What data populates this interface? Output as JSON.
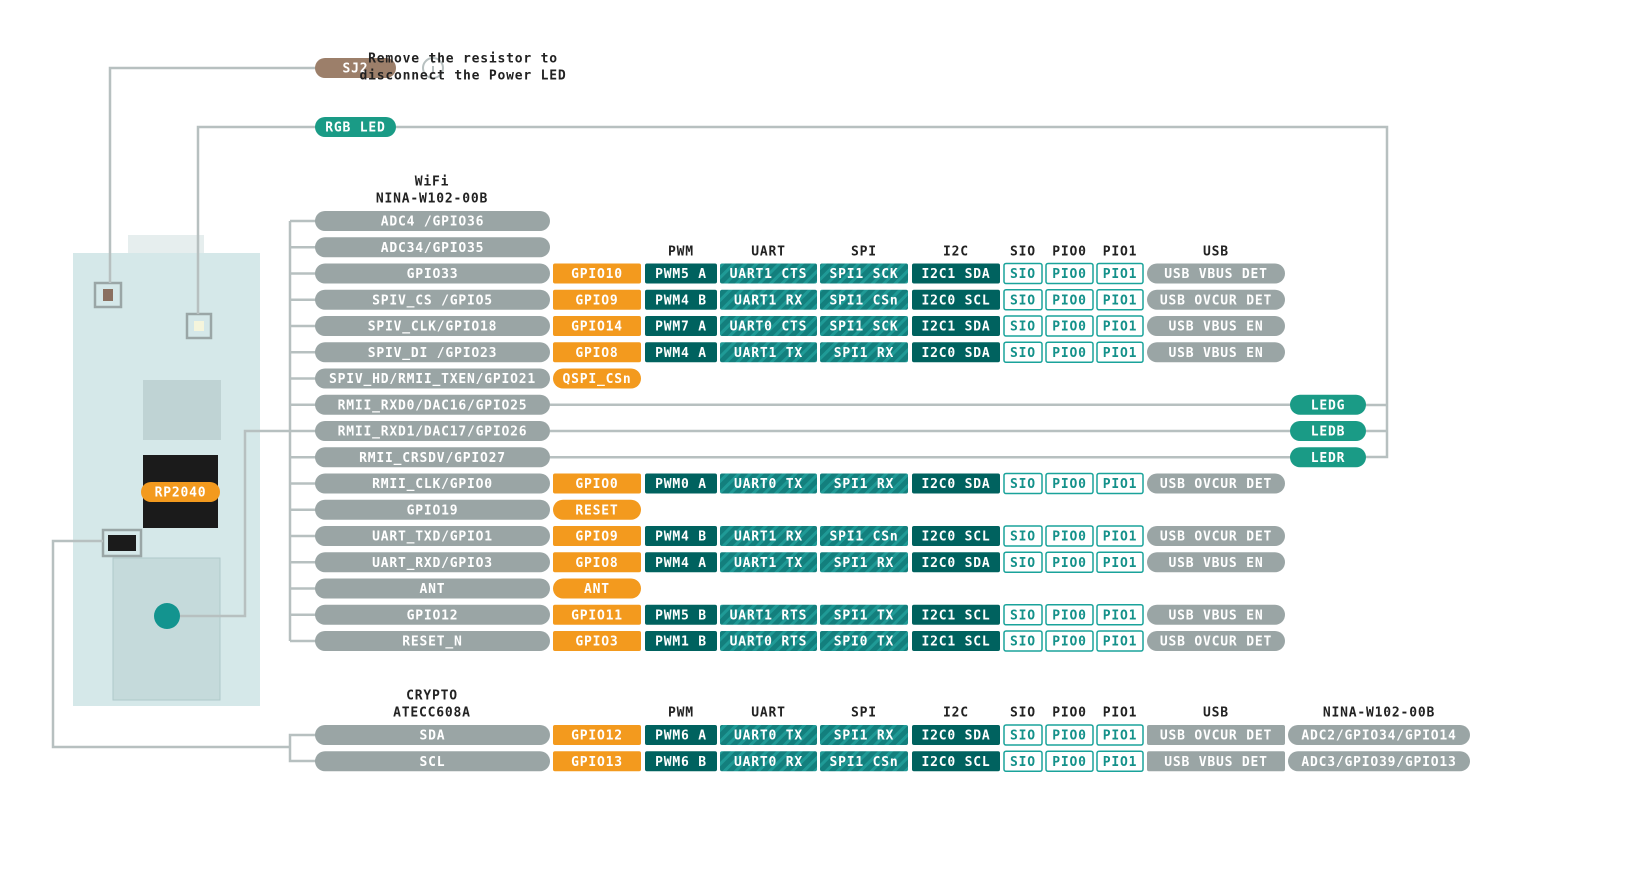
{
  "sj2": {
    "label": "SJ2",
    "note": [
      "Remove the resistor to",
      "disconnect the Power LED"
    ]
  },
  "rgb_led": "RGB LED",
  "chip": "RP2040",
  "wifi": {
    "title": [
      "WiFi",
      "NINA-W102-00B"
    ],
    "headers": [
      "PWM",
      "UART",
      "SPI",
      "I2C",
      "SIO",
      "PIO0",
      "PIO1",
      "USB"
    ],
    "rows": [
      [
        "ADC4 /GPIO36"
      ],
      [
        "ADC34/GPIO35"
      ],
      [
        "GPIO33",
        "GPIO10",
        "PWM5 A",
        "UART1 CTS",
        "SPI1 SCK",
        "I2C1 SDA",
        "SIO",
        "PIO0",
        "PIO1",
        "USB VBUS DET"
      ],
      [
        "SPIV_CS /GPIO5",
        "GPIO9",
        "PWM4 B",
        "UART1 RX",
        "SPI1 CSn",
        "I2C0 SCL",
        "SIO",
        "PIO0",
        "PIO1",
        "USB OVCUR DET"
      ],
      [
        "SPIV_CLK/GPIO18",
        "GPIO14",
        "PWM7 A",
        "UART0 CTS",
        "SPI1 SCK",
        "I2C1 SDA",
        "SIO",
        "PIO0",
        "PIO1",
        "USB VBUS EN"
      ],
      [
        "SPIV_DI /GPIO23",
        "GPIO8",
        "PWM4 A",
        "UART1 TX",
        "SPI1 RX",
        "I2C0 SDA",
        "SIO",
        "PIO0",
        "PIO1",
        "USB VBUS EN"
      ],
      [
        "SPIV_HD/RMII_TXEN/GPIO21",
        "QSPI_CSn"
      ],
      [
        "RMII_RXD0/DAC16/GPIO25"
      ],
      [
        "RMII_RXD1/DAC17/GPIO26"
      ],
      [
        "RMII_CRSDV/GPIO27"
      ],
      [
        "RMII_CLK/GPIO0",
        "GPIO0",
        "PWM0 A",
        "UART0 TX",
        "SPI1 RX",
        "I2C0 SDA",
        "SIO",
        "PIO0",
        "PIO1",
        "USB OVCUR DET"
      ],
      [
        "GPIO19",
        "RESET"
      ],
      [
        "UART_TXD/GPIO1",
        "GPIO9",
        "PWM4 B",
        "UART1 RX",
        "SPI1 CSn",
        "I2C0 SCL",
        "SIO",
        "PIO0",
        "PIO1",
        "USB OVCUR DET"
      ],
      [
        "UART_RXD/GPIO3",
        "GPIO8",
        "PWM4 A",
        "UART1 TX",
        "SPI1 RX",
        "I2C0 SDA",
        "SIO",
        "PIO0",
        "PIO1",
        "USB VBUS EN"
      ],
      [
        "ANT",
        "ANT"
      ],
      [
        "GPIO12",
        "GPIO11",
        "PWM5 B",
        "UART1 RTS",
        "SPI1 TX",
        "I2C1 SCL",
        "SIO",
        "PIO0",
        "PIO1",
        "USB VBUS EN"
      ],
      [
        "RESET_N",
        "GPIO3",
        "PWM1 B",
        "UART0 RTS",
        "SPI0 TX",
        "I2C1 SCL",
        "SIO",
        "PIO0",
        "PIO1",
        "USB OVCUR DET"
      ]
    ]
  },
  "leds": [
    "LEDG",
    "LEDB",
    "LEDR"
  ],
  "crypto": {
    "title": [
      "CRYPTO",
      "ATECC608A"
    ],
    "headers": [
      "PWM",
      "UART",
      "SPI",
      "I2C",
      "SIO",
      "PIO0",
      "PIO1",
      "USB",
      "NINA-W102-00B"
    ],
    "rows": [
      [
        "SDA",
        "GPIO12",
        "PWM6 A",
        "UART0 TX",
        "SPI1 RX",
        "I2C0 SDA",
        "SIO",
        "PIO0",
        "PIO1",
        "USB OVCUR DET",
        "ADC2/GPIO34/GPIO14"
      ],
      [
        "SCL",
        "GPIO13",
        "PWM6 B",
        "UART0 RX",
        "SPI1 CSn",
        "I2C0 SCL",
        "SIO",
        "PIO0",
        "PIO1",
        "USB VBUS DET",
        "ADC3/GPIO39/GPIO13"
      ]
    ]
  }
}
